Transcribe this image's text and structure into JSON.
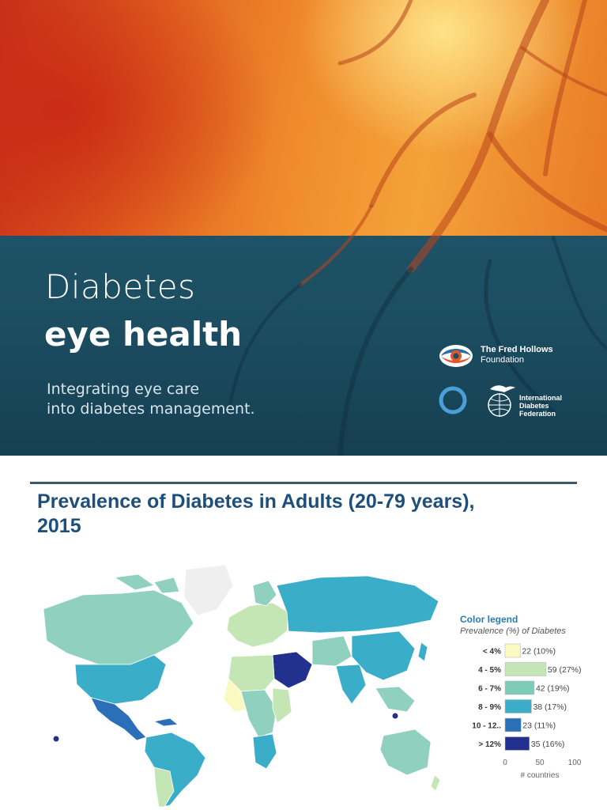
{
  "cover": {
    "title_line1": "Diabetes",
    "title_line2": "eye health",
    "subtitle_line1": "Integrating eye care",
    "subtitle_line2": "into diabetes management.",
    "partner1": {
      "line1": "The Fred Hollows",
      "line2": "Foundation"
    },
    "partner2": {
      "line1": "International",
      "line2": "Diabetes",
      "line3": "Federation"
    }
  },
  "slide": {
    "title_line1": "Prevalence of Diabetes in Adults (20-79 years),",
    "title_line2": "2015"
  },
  "colors": {
    "accent_title": "#1e4f7a",
    "band": "#1c4d61"
  },
  "chart_data": {
    "type": "bar",
    "orientation": "horizontal",
    "title": "Color legend",
    "subtitle": "Prevalence (%) of Diabetes",
    "categories": [
      "< 4%",
      "4 - 5%",
      "6 - 7%",
      "8 - 9%",
      "10 - 12..",
      "> 12%"
    ],
    "values": [
      22,
      59,
      42,
      38,
      23,
      35
    ],
    "data_labels": [
      "22 (10%)",
      "59 (27%)",
      "42 (19%)",
      "38 (17%)",
      "23 (11%)",
      "35 (16%)"
    ],
    "bar_colors": [
      "#fbf9c2",
      "#c3e6b4",
      "#7ecbb9",
      "#3aadc9",
      "#2a6fb8",
      "#22318e"
    ],
    "xlim": [
      0,
      100
    ],
    "xticks": [
      0,
      50,
      100
    ],
    "xlabel": "# countries",
    "grid": false
  }
}
